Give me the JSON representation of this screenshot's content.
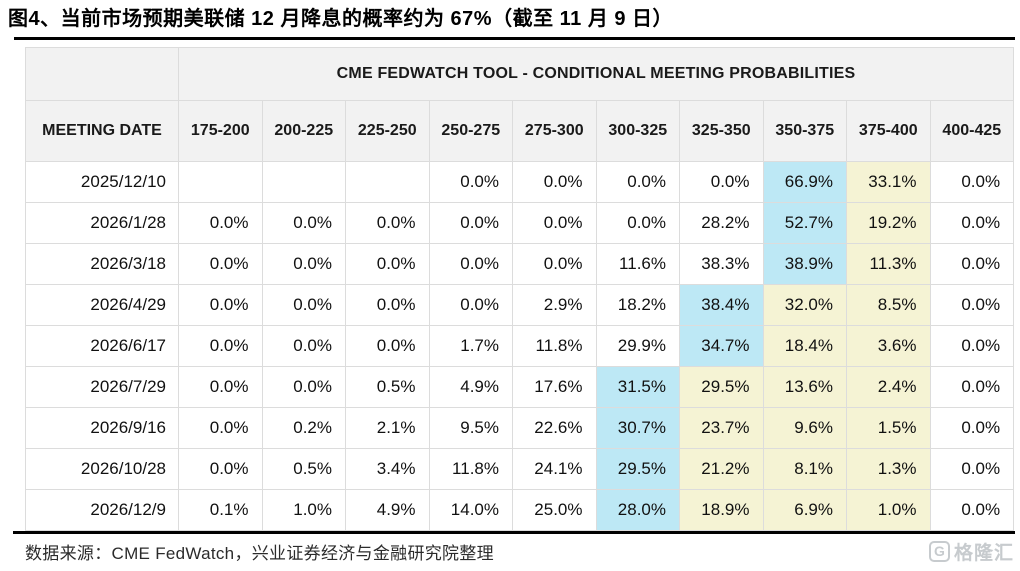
{
  "title": "图4、当前市场预期美联储 12 月降息的概率约为 67%（截至 11 月 9 日）",
  "table": {
    "banner": "CME FEDWATCH TOOL - CONDITIONAL MEETING PROBABILITIES",
    "columns": [
      "MEETING DATE",
      "175-200",
      "200-225",
      "225-250",
      "250-275",
      "275-300",
      "300-325",
      "325-350",
      "350-375",
      "375-400",
      "400-425"
    ],
    "rows": [
      {
        "date": "2025/12/10",
        "values": [
          "",
          "",
          "",
          "0.0%",
          "0.0%",
          "0.0%",
          "0.0%",
          "66.9%",
          "33.1%",
          "0.0%"
        ],
        "hl": [
          "",
          "",
          "",
          "",
          "",
          "",
          "",
          "b",
          "y",
          ""
        ]
      },
      {
        "date": "2026/1/28",
        "values": [
          "0.0%",
          "0.0%",
          "0.0%",
          "0.0%",
          "0.0%",
          "0.0%",
          "28.2%",
          "52.7%",
          "19.2%",
          "0.0%"
        ],
        "hl": [
          "",
          "",
          "",
          "",
          "",
          "",
          "",
          "b",
          "y",
          ""
        ]
      },
      {
        "date": "2026/3/18",
        "values": [
          "0.0%",
          "0.0%",
          "0.0%",
          "0.0%",
          "0.0%",
          "11.6%",
          "38.3%",
          "38.9%",
          "11.3%",
          "0.0%"
        ],
        "hl": [
          "",
          "",
          "",
          "",
          "",
          "",
          "",
          "b",
          "y",
          ""
        ]
      },
      {
        "date": "2026/4/29",
        "values": [
          "0.0%",
          "0.0%",
          "0.0%",
          "0.0%",
          "2.9%",
          "18.2%",
          "38.4%",
          "32.0%",
          "8.5%",
          "0.0%"
        ],
        "hl": [
          "",
          "",
          "",
          "",
          "",
          "",
          "b",
          "y",
          "y",
          ""
        ]
      },
      {
        "date": "2026/6/17",
        "values": [
          "0.0%",
          "0.0%",
          "0.0%",
          "1.7%",
          "11.8%",
          "29.9%",
          "34.7%",
          "18.4%",
          "3.6%",
          "0.0%"
        ],
        "hl": [
          "",
          "",
          "",
          "",
          "",
          "",
          "b",
          "y",
          "y",
          ""
        ]
      },
      {
        "date": "2026/7/29",
        "values": [
          "0.0%",
          "0.0%",
          "0.5%",
          "4.9%",
          "17.6%",
          "31.5%",
          "29.5%",
          "13.6%",
          "2.4%",
          "0.0%"
        ],
        "hl": [
          "",
          "",
          "",
          "",
          "",
          "b",
          "y",
          "y",
          "y",
          ""
        ]
      },
      {
        "date": "2026/9/16",
        "values": [
          "0.0%",
          "0.2%",
          "2.1%",
          "9.5%",
          "22.6%",
          "30.7%",
          "23.7%",
          "9.6%",
          "1.5%",
          "0.0%"
        ],
        "hl": [
          "",
          "",
          "",
          "",
          "",
          "b",
          "y",
          "y",
          "y",
          ""
        ]
      },
      {
        "date": "2026/10/28",
        "values": [
          "0.0%",
          "0.5%",
          "3.4%",
          "11.8%",
          "24.1%",
          "29.5%",
          "21.2%",
          "8.1%",
          "1.3%",
          "0.0%"
        ],
        "hl": [
          "",
          "",
          "",
          "",
          "",
          "b",
          "y",
          "y",
          "y",
          ""
        ]
      },
      {
        "date": "2026/12/9",
        "values": [
          "0.1%",
          "1.0%",
          "4.9%",
          "14.0%",
          "25.0%",
          "28.0%",
          "18.9%",
          "6.9%",
          "1.0%",
          "0.0%"
        ],
        "hl": [
          "",
          "",
          "",
          "",
          "",
          "b",
          "y",
          "y",
          "y",
          ""
        ]
      }
    ]
  },
  "footer": {
    "source": "数据来源：CME FedWatch，兴业证券经济与金融研究院整理",
    "logo_text": "格隆汇",
    "logo_initial": "G"
  },
  "colors": {
    "highlight_blue": "#bde8f5",
    "highlight_yellow": "#f5f3d4",
    "header_bg": "#f2f2f2",
    "grid_line": "#dcdcdc"
  }
}
